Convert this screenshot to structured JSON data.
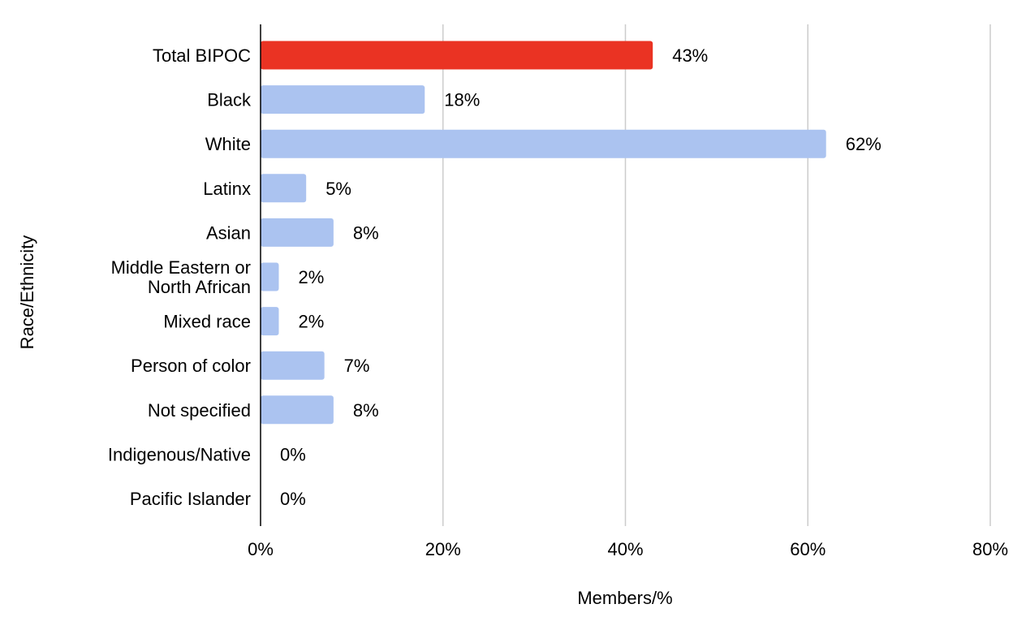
{
  "chart_data": {
    "type": "bar",
    "orientation": "horizontal",
    "categories": [
      "Total BIPOC",
      "Black",
      "White",
      "Latinx",
      "Asian",
      "Middle Eastern or North African",
      "Mixed race",
      "Person of color",
      "Not specified",
      "Indigenous/Native",
      "Pacific Islander"
    ],
    "category_lines": [
      [
        "Total BIPOC"
      ],
      [
        "Black"
      ],
      [
        "White"
      ],
      [
        "Latinx"
      ],
      [
        "Asian"
      ],
      [
        "Middle Eastern or",
        "North African"
      ],
      [
        "Mixed race"
      ],
      [
        "Person of color"
      ],
      [
        "Not specified"
      ],
      [
        "Indigenous/Native"
      ],
      [
        "Pacific Islander"
      ]
    ],
    "values": [
      43,
      18,
      62,
      5,
      8,
      2,
      2,
      7,
      8,
      0,
      0
    ],
    "data_labels": [
      "43%",
      "18%",
      "62%",
      "5%",
      "8%",
      "2%",
      "2%",
      "7%",
      "8%",
      "0%",
      "0%"
    ],
    "colors": [
      "#ea3323",
      "#abc3f0",
      "#abc3f0",
      "#abc3f0",
      "#abc3f0",
      "#abc3f0",
      "#abc3f0",
      "#abc3f0",
      "#abc3f0",
      "#abc3f0",
      "#abc3f0"
    ],
    "xlabel": "Members/%",
    "ylabel": "Race/Ethnicity",
    "xlim": [
      0,
      80
    ],
    "xticks": [
      0,
      20,
      40,
      60,
      80
    ],
    "xtick_labels": [
      "0%",
      "20%",
      "40%",
      "60%",
      "80%"
    ],
    "grid": true,
    "legend": "none"
  }
}
